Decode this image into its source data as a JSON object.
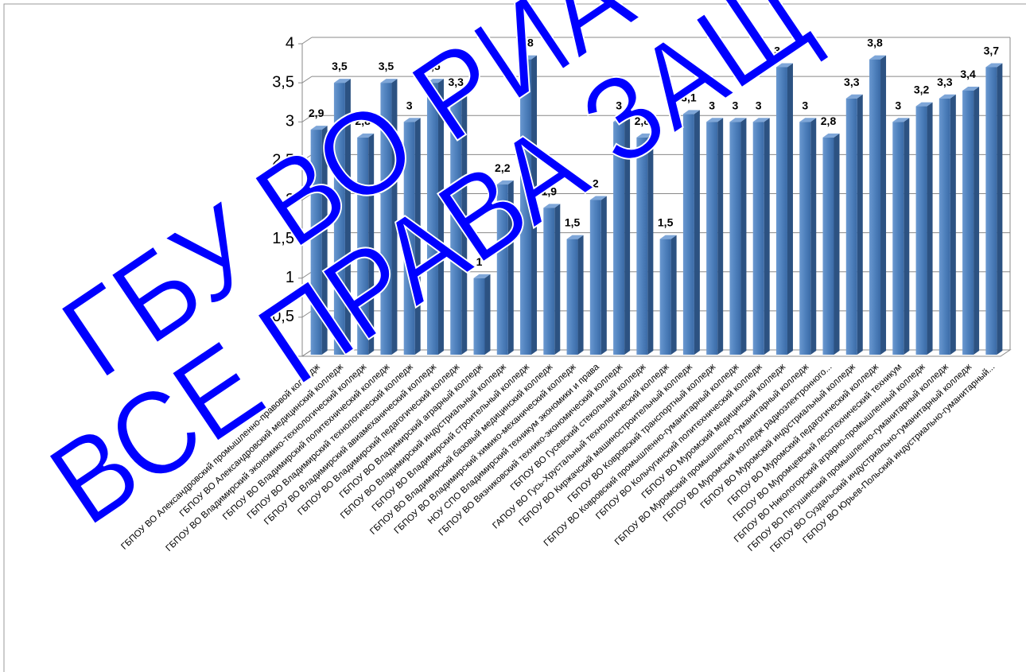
{
  "chart_data": {
    "type": "bar3d",
    "categories": [
      "ГБПОУ ВО Александровский промышленно-правовой колледж",
      "ГБПОУ ВО Александровский медицинский колледж",
      "ГБПОУ ВО Владимирский экономико-технологический колледж",
      "ГБПОУ ВО Владимирский политехнический колледж",
      "ГБПОУ ВО Владимирский технологический колледж",
      "ГБПОУ ВО Владимирский авиамеханический колледж",
      "ГБПОУ ВО Владимирский педагогический колледж",
      "ГБПОУ ВО Владимирский аграрный колледж",
      "ГБПОУ ВО Владимирский индустриальный колледж",
      "ГБПОУ ВО Владимирский строительный колледж",
      "ГБПОУ ВО Владимирский базовый медицинский колледж",
      "ГБПОУ ВО Владимирский химико-механический колледж",
      "НОУ СПО Владимирский техникум экономики и права",
      "ГБПОУ ВО Вязниковский технико-экономический колледж",
      "ГБПОУ ВО Гусевский стекольный колледж",
      "ГАПОУ ВО Гусь-Хрустальный технологический колледж",
      "ГБПОУ ВО Киржачский машиностроительный колледж",
      "ГБПОУ ВО Ковровский транспортный колледж",
      "ГБПОУ ВО Ковровский промышленно-гуманитарный колледж",
      "ГБПОУ ВО Кольчугинский политехнический колледж",
      "ГБПОУ ВО Муромский медицинский колледж",
      "ГБПОУ ВО Муромский промышленно-гуманитарный колледж",
      "ГБПОУ ВО Муромский колледж радиоэлектронного...",
      "ГБПОУ ВО Муромский индустриальный колледж",
      "ГБПОУ ВО Муромский педагогический колледж",
      "ГБПОУ ВО Муромцевский лесотехнический техникум",
      "ГБПОУ ВО Никологорский аграрно-промышленный колледж",
      "ГБПОУ ВО Петушинский промышленно-гуманитарный колледж",
      "ГБПОУ ВО Суздальский индустриально-гуманитарный колледж",
      "ГБПОУ ВО Юрьев-Польский индустриально-гуманитарный..."
    ],
    "values": [
      2.9,
      3.5,
      2.8,
      3.5,
      3,
      3.5,
      3.3,
      1,
      2.2,
      3.8,
      1.9,
      1.5,
      2,
      3,
      2.8,
      1.5,
      3.1,
      3,
      3,
      3,
      3.7,
      3,
      2.8,
      3.3,
      3.8,
      3,
      3.2,
      3.3,
      3.4,
      3.7
    ],
    "value_labels": [
      "2,9",
      "3,5",
      "2,8",
      "3,5",
      "3",
      "3,5",
      "3,3",
      "1",
      "2,2",
      "3,8",
      "1,9",
      "1,5",
      "2",
      "3",
      "2,8",
      "1,5",
      "3,1",
      "3",
      "3",
      "3",
      "3,7",
      "3",
      "2,8",
      "3,3",
      "3,8",
      "3",
      "3,2",
      "3,3",
      "3,4",
      "3,7"
    ],
    "color": "#4f81bd",
    "ylim": [
      0,
      4
    ],
    "yticks": [
      0,
      {
        "value": 0.5,
        "label": "0,5"
      },
      1,
      {
        "value": 1.5,
        "label": "1,5"
      },
      2,
      {
        "value": 2.5,
        "label": "2,5"
      },
      3,
      {
        "value": 3.5,
        "label": "3,5"
      },
      4
    ],
    "grid": true
  },
  "watermark": [
    "ГБУ ВО РИА",
    "ВСЕ ПРАВА ЗАЩ"
  ]
}
